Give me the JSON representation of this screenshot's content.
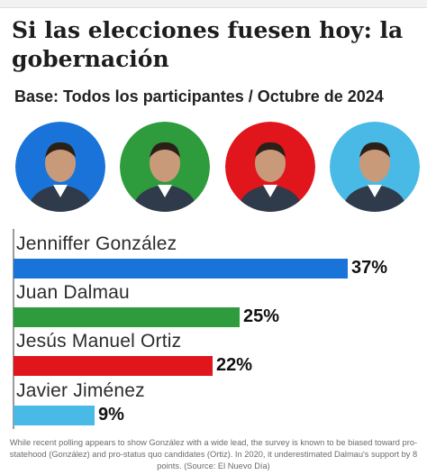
{
  "chart_data": {
    "type": "bar",
    "orientation": "horizontal",
    "title": "Si las elecciones fuesen hoy: la gobernación",
    "subtitle": "Base: Todos los participantes / Octubre de 2024",
    "categories": [
      "Jenniffer González",
      "Juan Dalmau",
      "Jesús Manuel Ortiz",
      "Javier Jiménez"
    ],
    "values": [
      37,
      25,
      22,
      9
    ],
    "labels": [
      "37%",
      "25%",
      "22%",
      "9%"
    ],
    "colors": [
      "#1a73d9",
      "#2e9b3d",
      "#e0161c",
      "#49b9e6"
    ],
    "xlim": [
      0,
      37
    ],
    "grid": false
  },
  "portraits": [
    {
      "icon": "candidate-portrait-icon",
      "bg": "#1a73d9"
    },
    {
      "icon": "candidate-portrait-icon",
      "bg": "#2e9b3d"
    },
    {
      "icon": "candidate-portrait-icon",
      "bg": "#e0161c"
    },
    {
      "icon": "candidate-portrait-icon",
      "bg": "#49b9e6"
    }
  ],
  "caption": "While recent polling appears to show González with a wide lead, the survey is known to be biased toward pro-statehood (González) and pro-status quo candidates (Ortiz). In 2020, it underestimated Dalmau's support by 8 points. (Source: El Nuevo Día)"
}
